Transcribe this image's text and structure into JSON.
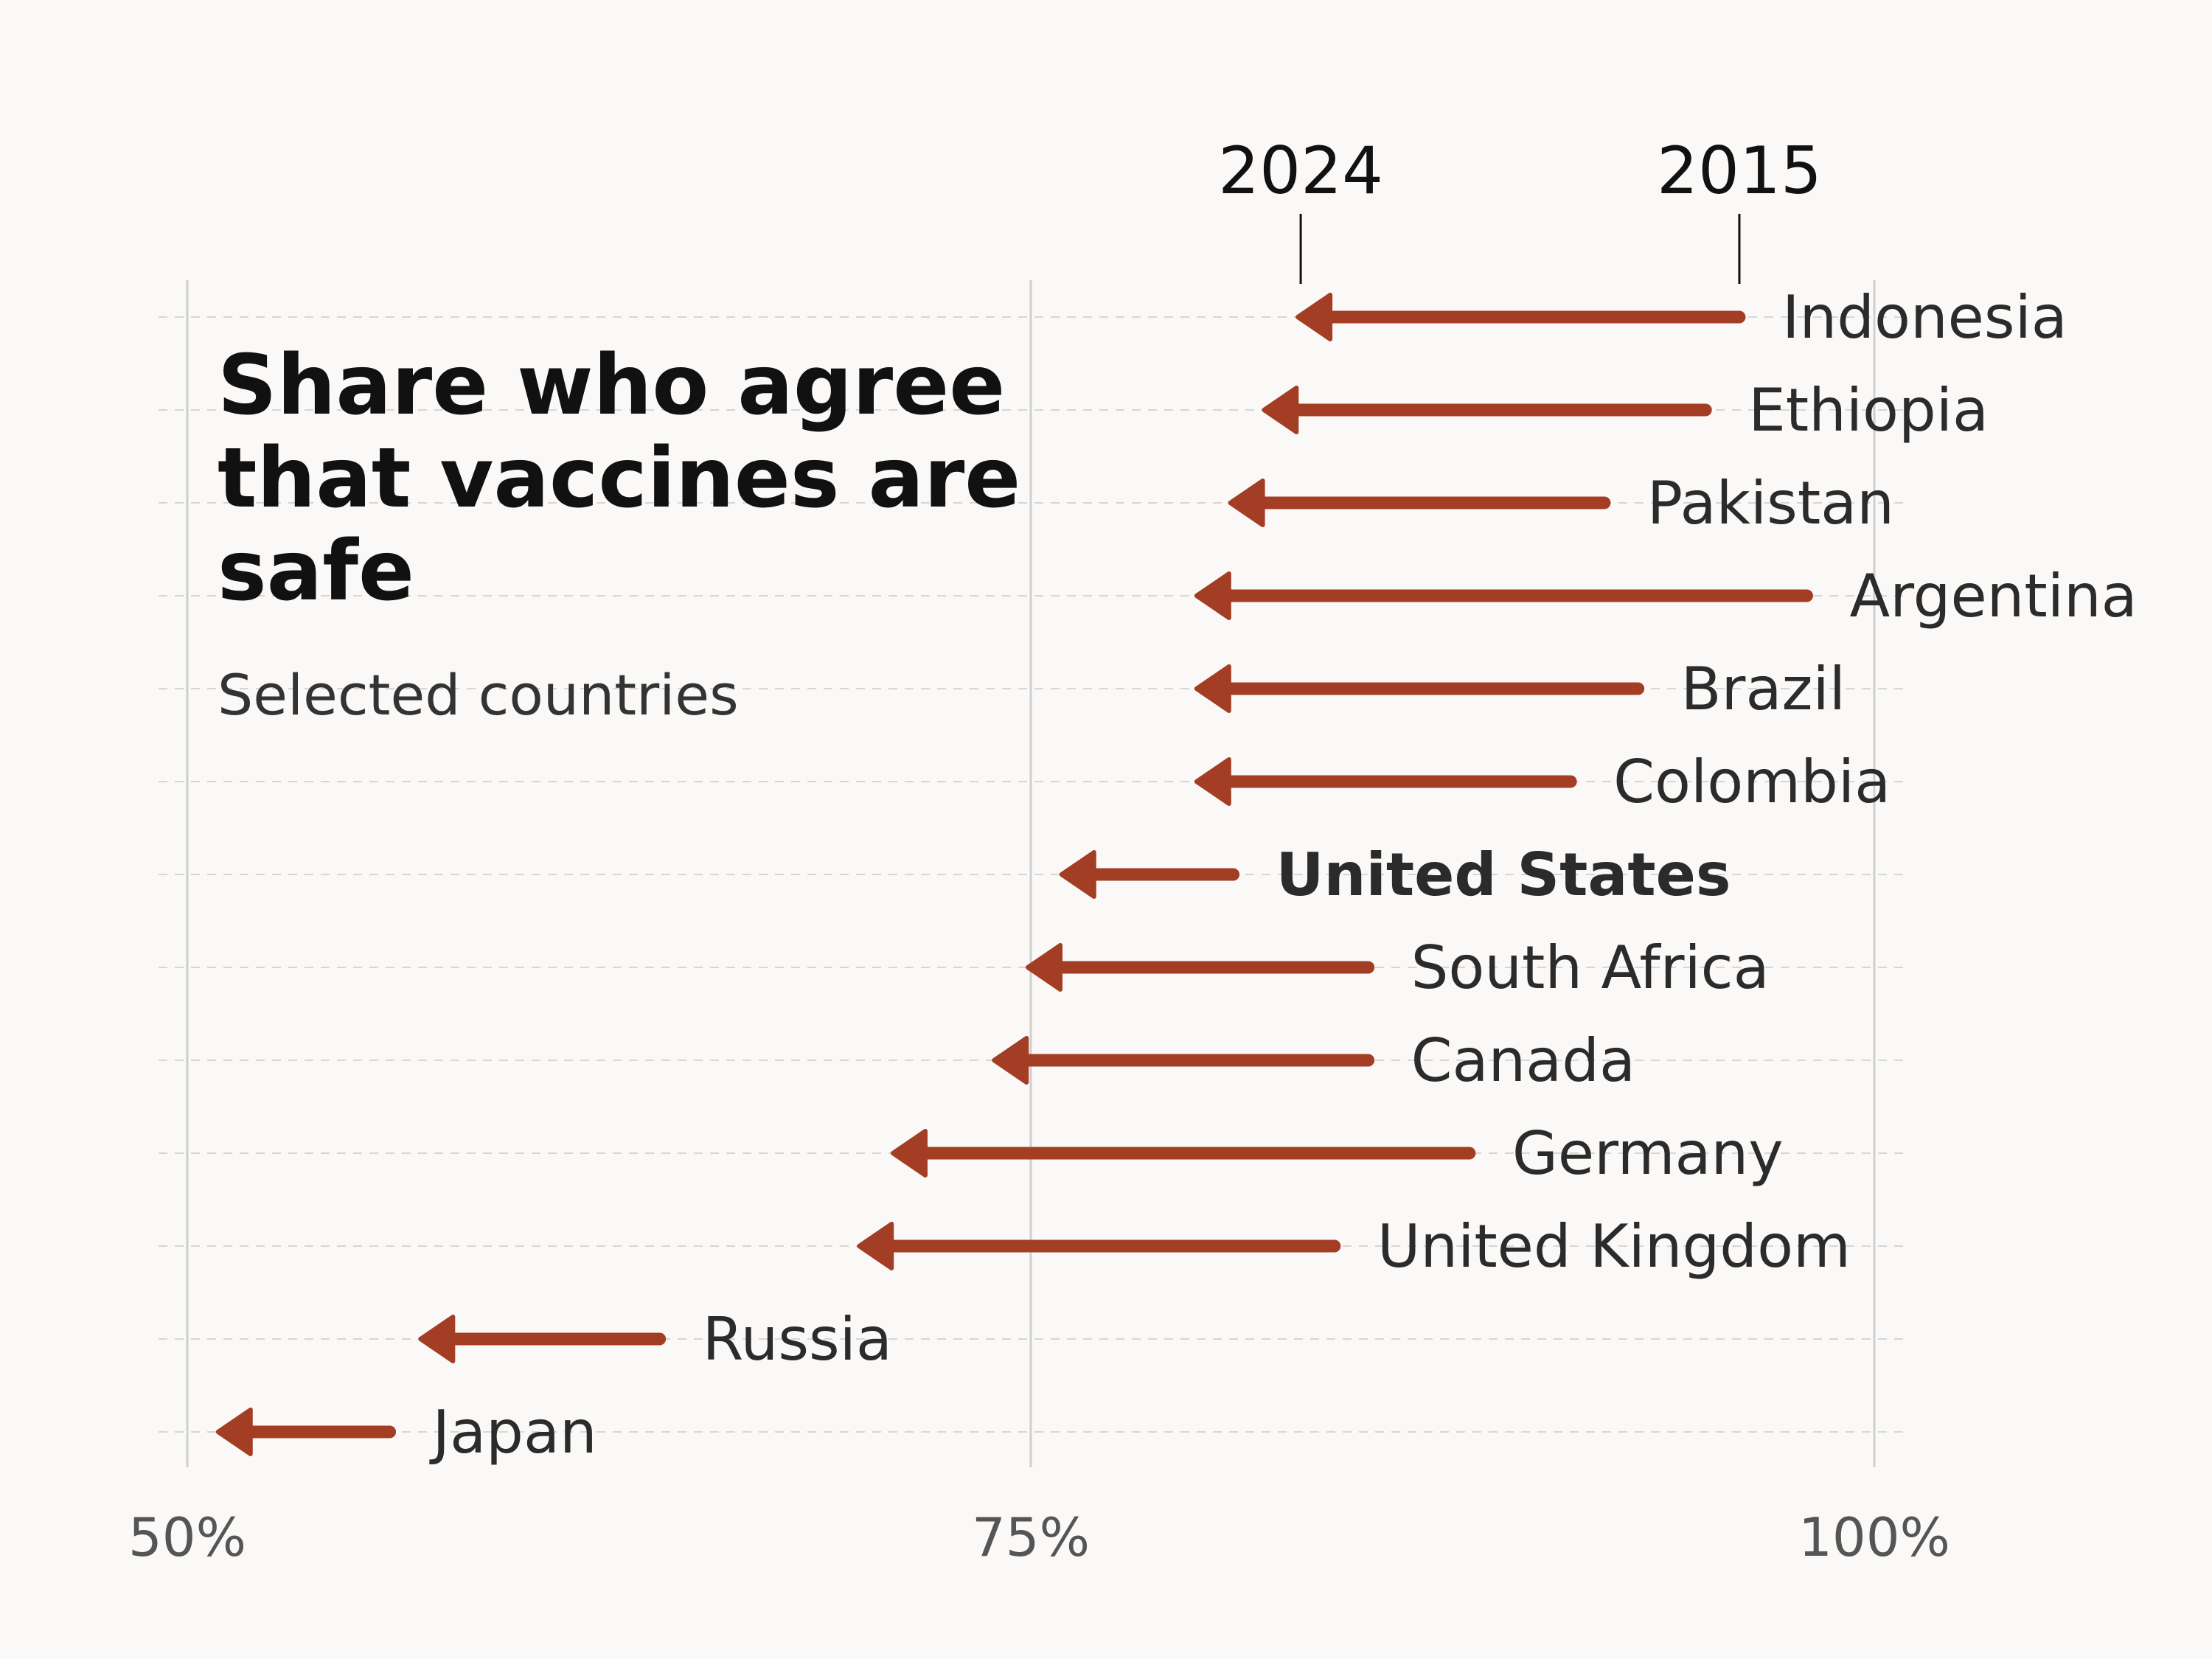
{
  "chart_data": {
    "type": "arrow",
    "title": "Share who agree that vaccines are safe",
    "subtitle": "Selected countries",
    "series_names": {
      "start": "2015",
      "end": "2024"
    },
    "x_ticks": [
      {
        "value": 50,
        "label": "50%"
      },
      {
        "value": 75,
        "label": "75%"
      },
      {
        "value": 100,
        "label": "100%"
      }
    ],
    "xlim": [
      50,
      100
    ],
    "grid": true,
    "color": "#a33d24",
    "rows": [
      {
        "country": "Indonesia",
        "y2015": 96,
        "y2024": 83,
        "highlight": false
      },
      {
        "country": "Ethiopia",
        "y2015": 95,
        "y2024": 82,
        "highlight": false
      },
      {
        "country": "Pakistan",
        "y2015": 92,
        "y2024": 81,
        "highlight": false
      },
      {
        "country": "Argentina",
        "y2015": 98,
        "y2024": 80,
        "highlight": false
      },
      {
        "country": "Brazil",
        "y2015": 93,
        "y2024": 80,
        "highlight": false
      },
      {
        "country": "Colombia",
        "y2015": 91,
        "y2024": 80,
        "highlight": false
      },
      {
        "country": "United States",
        "y2015": 81,
        "y2024": 76,
        "highlight": true
      },
      {
        "country": "South Africa",
        "y2015": 85,
        "y2024": 75,
        "highlight": false
      },
      {
        "country": "Canada",
        "y2015": 85,
        "y2024": 74,
        "highlight": false
      },
      {
        "country": "Germany",
        "y2015": 88,
        "y2024": 71,
        "highlight": false
      },
      {
        "country": "United Kingdom",
        "y2015": 84,
        "y2024": 70,
        "highlight": false
      },
      {
        "country": "Russia",
        "y2015": 64,
        "y2024": 57,
        "highlight": false
      },
      {
        "country": "Japan",
        "y2015": 56,
        "y2024": 51,
        "highlight": false
      }
    ]
  }
}
